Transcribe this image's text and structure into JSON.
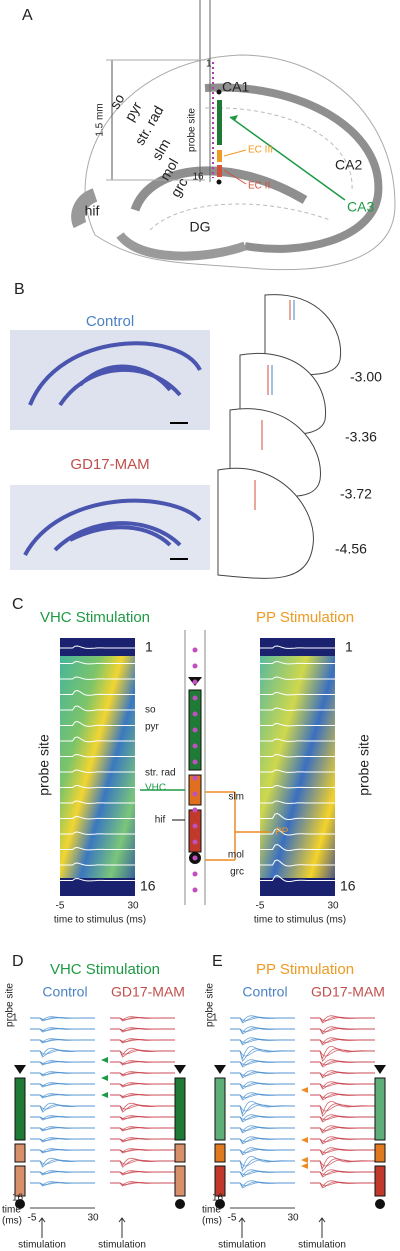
{
  "panel_a": {
    "label": "A",
    "probe_top": "1",
    "probe_bottom": "16",
    "scale": "1.5 mm",
    "layers": [
      "so",
      "pyr",
      "str. rad",
      "slm",
      "mol",
      "grc"
    ],
    "hif": "hif",
    "probe_site": "probe site",
    "ca1": "CA1",
    "ec3": "EC III",
    "ec2": "EC II",
    "ca2": "CA2",
    "ca3": "CA3",
    "dg": "DG"
  },
  "panel_b": {
    "label": "B",
    "control": "Control",
    "mam": "GD17-MAM",
    "coords": [
      "-3.00",
      "-3.36",
      "-3.72",
      "-4.56"
    ]
  },
  "panel_c": {
    "label": "C",
    "vhc_title": "VHC Stimulation",
    "pp_title": "PP Stimulation",
    "site_top": "1",
    "site_bottom": "16",
    "y_label": "probe site",
    "x_ticks": [
      "-5",
      "30"
    ],
    "x_label": "time to stimulus (ms)",
    "vhc_layers": [
      "so",
      "pyr",
      "str. rad"
    ],
    "vhc": "VHC",
    "hif": "hif",
    "pp_layers": [
      "slm",
      "mol",
      "grc"
    ],
    "pp": "PP"
  },
  "panel_d": {
    "label": "D",
    "title": "VHC Stimulation",
    "control": "Control",
    "mam": "GD17-MAM",
    "y_label": "probe site",
    "site_top": "1",
    "site_bottom": "16",
    "time_label": [
      "time",
      "(ms)"
    ],
    "x_ticks": [
      "-5",
      "30"
    ],
    "stimulation": "stimulation"
  },
  "panel_e": {
    "label": "E",
    "title": "PP Stimulation",
    "control": "Control",
    "mam": "GD17-MAM",
    "y_label": "probe site",
    "site_top": "1",
    "site_bottom": "16",
    "time_label": [
      "time",
      "(ms)"
    ],
    "x_ticks": [
      "-5",
      "30"
    ],
    "stimulation": "stimulation"
  }
}
